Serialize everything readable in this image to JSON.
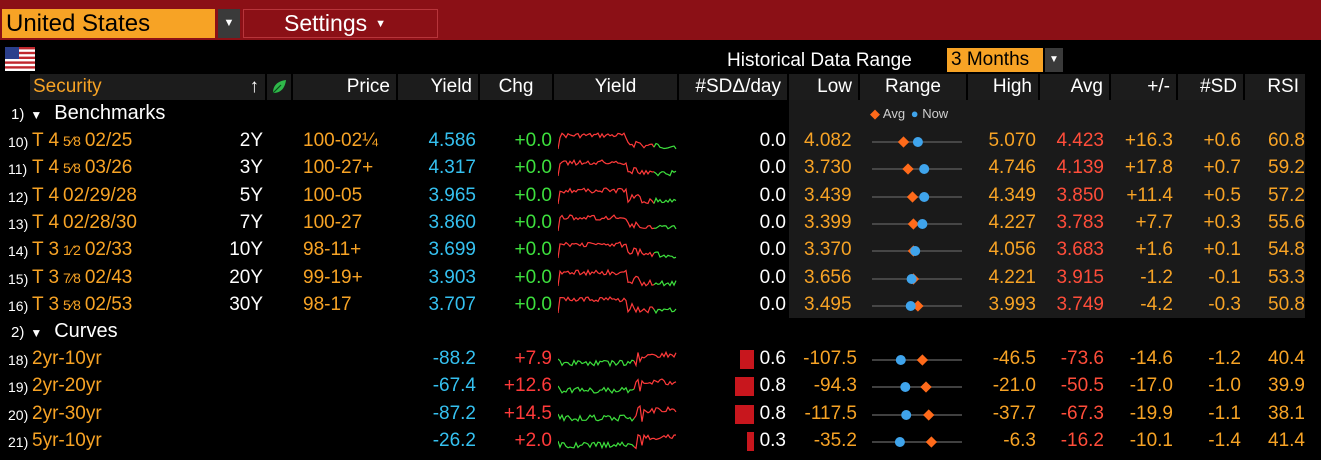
{
  "topbar": {
    "country": "United States",
    "settings": "Settings"
  },
  "header": {
    "label": "Historical Data Range",
    "value": "3 Months"
  },
  "columns": {
    "security": "Security",
    "price": "Price",
    "yield": "Yield",
    "chg": "Chg",
    "yield_spark": "Yield",
    "sd_day": "#SDΔ/day",
    "low": "Low",
    "range": "Range",
    "high": "High",
    "avg": "Avg",
    "plusminus": "+/-",
    "sd": "#SD",
    "rsi": "RSI"
  },
  "legend": {
    "avg": "Avg",
    "now": "Now"
  },
  "groups": [
    {
      "num": "1)",
      "label": "Benchmarks"
    },
    {
      "num": "2)",
      "label": "Curves"
    }
  ],
  "benchmarks": [
    {
      "n": "10)",
      "coupon": "T 4",
      "frac": "5⁄8",
      "date": "02/25",
      "tenor": "2Y",
      "price": "100-02¼",
      "yield": "4.586",
      "chg": "+0.0",
      "sd": "0.0",
      "low": "4.082",
      "high": "5.070",
      "avg": "4.423",
      "pm": "+16.3",
      "sdv": "+0.6",
      "rsi": "60.8",
      "avg_frac": 0.35,
      "now_frac": 0.51
    },
    {
      "n": "11)",
      "coupon": "T 4",
      "frac": "5⁄8",
      "date": "03/26",
      "tenor": "3Y",
      "price": "100-27+",
      "yield": "4.317",
      "chg": "+0.0",
      "sd": "0.0",
      "low": "3.730",
      "high": "4.746",
      "avg": "4.139",
      "pm": "+17.8",
      "sdv": "+0.7",
      "rsi": "59.2",
      "avg_frac": 0.4,
      "now_frac": 0.58
    },
    {
      "n": "12)",
      "coupon": "T 4",
      "frac": "",
      "date": "02/29/28",
      "tenor": "5Y",
      "price": "100-05",
      "yield": "3.965",
      "chg": "+0.0",
      "sd": "0.0",
      "low": "3.439",
      "high": "4.349",
      "avg": "3.850",
      "pm": "+11.4",
      "sdv": "+0.5",
      "rsi": "57.2",
      "avg_frac": 0.45,
      "now_frac": 0.58
    },
    {
      "n": "13)",
      "coupon": "T 4",
      "frac": "",
      "date": "02/28/30",
      "tenor": "7Y",
      "price": "100-27",
      "yield": "3.860",
      "chg": "+0.0",
      "sd": "0.0",
      "low": "3.399",
      "high": "4.227",
      "avg": "3.783",
      "pm": "+7.7",
      "sdv": "+0.3",
      "rsi": "55.6",
      "avg_frac": 0.46,
      "now_frac": 0.56
    },
    {
      "n": "14)",
      "coupon": "T 3",
      "frac": "1⁄2",
      "date": "02/33",
      "tenor": "10Y",
      "price": "98-11+",
      "yield": "3.699",
      "chg": "+0.0",
      "sd": "0.0",
      "low": "3.370",
      "high": "4.056",
      "avg": "3.683",
      "pm": "+1.6",
      "sdv": "+0.1",
      "rsi": "54.8",
      "avg_frac": 0.46,
      "now_frac": 0.48
    },
    {
      "n": "15)",
      "coupon": "T 3",
      "frac": "7⁄8",
      "date": "02/43",
      "tenor": "20Y",
      "price": "99-19+",
      "yield": "3.903",
      "chg": "+0.0",
      "sd": "0.0",
      "low": "3.656",
      "high": "4.221",
      "avg": "3.915",
      "pm": "-1.2",
      "sdv": "-0.1",
      "rsi": "53.3",
      "avg_frac": 0.46,
      "now_frac": 0.44
    },
    {
      "n": "16)",
      "coupon": "T 3",
      "frac": "5⁄8",
      "date": "02/53",
      "tenor": "30Y",
      "price": "98-17",
      "yield": "3.707",
      "chg": "+0.0",
      "sd": "0.0",
      "low": "3.495",
      "high": "3.993",
      "avg": "3.749",
      "pm": "-4.2",
      "sdv": "-0.3",
      "rsi": "50.8",
      "avg_frac": 0.51,
      "now_frac": 0.43
    }
  ],
  "curves": [
    {
      "n": "18)",
      "name": "2yr-10yr",
      "yield": "-88.2",
      "chg": "+7.9",
      "sd": "0.6",
      "bar": 0.6,
      "low": "-107.5",
      "high": "-46.5",
      "avg": "-73.6",
      "pm": "-14.6",
      "sdv": "-1.2",
      "rsi": "40.4",
      "avg_frac": 0.56,
      "now_frac": 0.32
    },
    {
      "n": "19)",
      "name": "2yr-20yr",
      "yield": "-67.4",
      "chg": "+12.6",
      "sd": "0.8",
      "bar": 0.8,
      "low": "-94.3",
      "high": "-21.0",
      "avg": "-50.5",
      "pm": "-17.0",
      "sdv": "-1.0",
      "rsi": "39.9",
      "avg_frac": 0.6,
      "now_frac": 0.37
    },
    {
      "n": "20)",
      "name": "2yr-30yr",
      "yield": "-87.2",
      "chg": "+14.5",
      "sd": "0.8",
      "bar": 0.8,
      "low": "-117.5",
      "high": "-37.7",
      "avg": "-67.3",
      "pm": "-19.9",
      "sdv": "-1.1",
      "rsi": "38.1",
      "avg_frac": 0.63,
      "now_frac": 0.38
    },
    {
      "n": "21)",
      "name": "5yr-10yr",
      "yield": "-26.2",
      "chg": "+2.0",
      "sd": "0.3",
      "bar": 0.3,
      "low": "-35.2",
      "high": "-6.3",
      "avg": "-16.2",
      "pm": "-10.1",
      "sdv": "-1.4",
      "rsi": "41.4",
      "avg_frac": 0.66,
      "now_frac": 0.31
    }
  ],
  "colors": {
    "orange": "#f7a325",
    "avg_marker": "#ff6a1a",
    "now_marker": "#3fa4ec",
    "spark_red": "#ff3a3a",
    "spark_green": "#3de03d",
    "bar": "#c8161d"
  }
}
